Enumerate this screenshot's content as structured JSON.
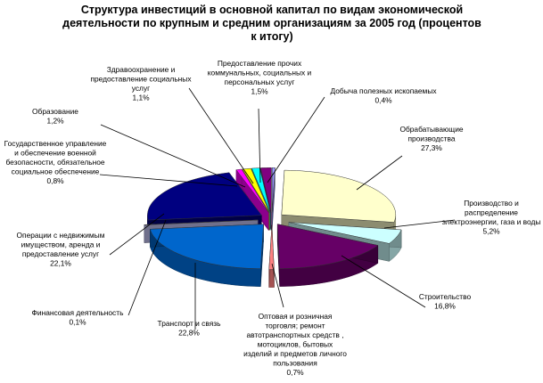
{
  "chart_data": {
    "type": "pie",
    "title": "Структура инвестиций в основной капитал по видам экономической деятельности по крупным и средним организациям за 2005 год (процентов к итогу)",
    "slices": [
      {
        "label": [
          "Добыча полезных ископаемых"
        ],
        "value_text": "0,4%",
        "value": 0.4,
        "color": "#9999ff"
      },
      {
        "label": [
          "Обрабатывающие",
          "производства"
        ],
        "value_text": "27,3%",
        "value": 27.3,
        "color": "#ffffcc"
      },
      {
        "label": [
          "Производство и",
          "распределение",
          "электроэнергии, газа и воды"
        ],
        "value_text": "5,2%",
        "value": 5.2,
        "color": "#ccffff"
      },
      {
        "label": [
          "Строительство"
        ],
        "value_text": "16,8%",
        "value": 16.8,
        "color": "#660066"
      },
      {
        "label": [
          "Оптовая и розничная",
          "торговля; ремонт",
          "автотранспортных средств ,",
          "мотоциклов, бытовых",
          "изделий и предметов личного",
          "пользования"
        ],
        "value_text": "0,7%",
        "value": 0.7,
        "color": "#ff8080"
      },
      {
        "label": [
          "Транспорт и связь"
        ],
        "value_text": "22,8%",
        "value": 22.8,
        "color": "#0066cc"
      },
      {
        "label": [
          "Финансовая деятельность"
        ],
        "value_text": "0,1%",
        "value": 0.1,
        "color": "#ccccff"
      },
      {
        "label": [
          "Операции с недвижимым",
          "имуществом, аренда и",
          "предоставление услуг"
        ],
        "value_text": "22,1%",
        "value": 22.1,
        "color": "#000080"
      },
      {
        "label": [
          "Государственное управление",
          "и обеспечение военной",
          "безопасности, обязательное",
          "социальное обеспечение"
        ],
        "value_text": "0,8%",
        "value": 0.8,
        "color": "#ff00ff"
      },
      {
        "label": [
          "Образование"
        ],
        "value_text": "1,2%",
        "value": 1.2,
        "color": "#ffff00"
      },
      {
        "label": [
          "Здравоохранение и",
          "предоставление социальных",
          "услуг"
        ],
        "value_text": "1,1%",
        "value": 1.1,
        "color": "#00ffff"
      },
      {
        "label": [
          "Предоставление прочих",
          "коммунальных, социальных и",
          "персональных услуг"
        ],
        "value_text": "1,5%",
        "value": 1.5,
        "color": "#800080"
      }
    ]
  }
}
